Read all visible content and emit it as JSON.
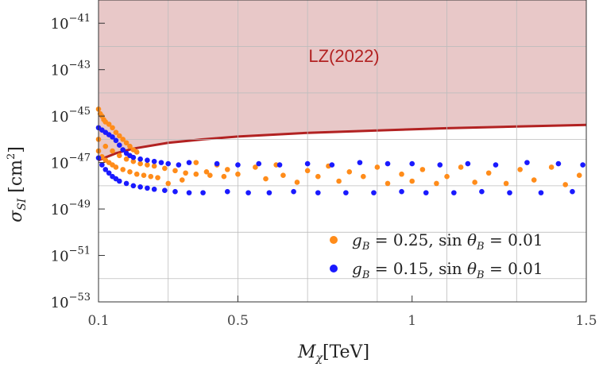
{
  "chart_data": {
    "type": "scatter",
    "title": "",
    "xlabel": "M_χ[TeV]",
    "ylabel": "σ_SI [cm²]",
    "x_scale": "linear",
    "y_scale": "log",
    "xlim": [
      0.1,
      1.5
    ],
    "ylim_log10": [
      -53,
      -40
    ],
    "x_ticks": [
      {
        "value": 0.1,
        "label": "0.1"
      },
      {
        "value": 0.5,
        "label": "0.5"
      },
      {
        "value": 1.0,
        "label": "1"
      },
      {
        "value": 1.5,
        "label": "1.5"
      }
    ],
    "y_ticks": [
      {
        "exp": -41,
        "base": "10",
        "power": "−41"
      },
      {
        "exp": -43,
        "base": "10",
        "power": "−43"
      },
      {
        "exp": -45,
        "base": "10",
        "power": "−45"
      },
      {
        "exp": -47,
        "base": "10",
        "power": "−47"
      },
      {
        "exp": -49,
        "base": "10",
        "power": "−49"
      },
      {
        "exp": -51,
        "base": "10",
        "power": "−51"
      },
      {
        "exp": -53,
        "base": "10",
        "power": "−53"
      }
    ],
    "grid": true,
    "exclusion": {
      "label": "LZ(2022)",
      "fill_color": "#e8c8c8",
      "line_color": "#b22222",
      "curve": [
        {
          "x": 0.1,
          "log10y": -46.9
        },
        {
          "x": 0.15,
          "log10y": -46.6
        },
        {
          "x": 0.2,
          "log10y": -46.4
        },
        {
          "x": 0.3,
          "log10y": -46.15
        },
        {
          "x": 0.4,
          "log10y": -46.0
        },
        {
          "x": 0.5,
          "log10y": -45.88
        },
        {
          "x": 0.7,
          "log10y": -45.72
        },
        {
          "x": 0.9,
          "log10y": -45.62
        },
        {
          "x": 1.1,
          "log10y": -45.52
        },
        {
          "x": 1.3,
          "log10y": -45.45
        },
        {
          "x": 1.5,
          "log10y": -45.38
        }
      ]
    },
    "series": [
      {
        "name_parts": {
          "g": "g",
          "sub": "B",
          "eq1": " = 0.25, sin ",
          "theta": "θ",
          "sub2": "B",
          "eq2": " = 0.01"
        },
        "color": "#ff8c1a",
        "points": [
          {
            "x": 0.1,
            "log10y": -44.7
          },
          {
            "x": 0.105,
            "log10y": -44.9
          },
          {
            "x": 0.11,
            "log10y": -45.0
          },
          {
            "x": 0.115,
            "log10y": -45.15
          },
          {
            "x": 0.12,
            "log10y": -45.25
          },
          {
            "x": 0.13,
            "log10y": -45.35
          },
          {
            "x": 0.14,
            "log10y": -45.5
          },
          {
            "x": 0.15,
            "log10y": -45.7
          },
          {
            "x": 0.16,
            "log10y": -45.85
          },
          {
            "x": 0.17,
            "log10y": -46.0
          },
          {
            "x": 0.18,
            "log10y": -46.15
          },
          {
            "x": 0.19,
            "log10y": -46.3
          },
          {
            "x": 0.2,
            "log10y": -46.45
          },
          {
            "x": 0.21,
            "log10y": -46.55
          },
          {
            "x": 0.1,
            "log10y": -46.5
          },
          {
            "x": 0.11,
            "log10y": -46.75
          },
          {
            "x": 0.12,
            "log10y": -46.9
          },
          {
            "x": 0.13,
            "log10y": -47.0
          },
          {
            "x": 0.14,
            "log10y": -47.1
          },
          {
            "x": 0.15,
            "log10y": -47.2
          },
          {
            "x": 0.17,
            "log10y": -47.3
          },
          {
            "x": 0.19,
            "log10y": -47.4
          },
          {
            "x": 0.21,
            "log10y": -47.5
          },
          {
            "x": 0.23,
            "log10y": -47.55
          },
          {
            "x": 0.25,
            "log10y": -47.6
          },
          {
            "x": 0.27,
            "log10y": -47.65
          },
          {
            "x": 0.1,
            "log10y": -46.0
          },
          {
            "x": 0.12,
            "log10y": -46.3
          },
          {
            "x": 0.14,
            "log10y": -46.5
          },
          {
            "x": 0.16,
            "log10y": -46.7
          },
          {
            "x": 0.18,
            "log10y": -46.85
          },
          {
            "x": 0.2,
            "log10y": -46.95
          },
          {
            "x": 0.22,
            "log10y": -47.05
          },
          {
            "x": 0.24,
            "log10y": -47.1
          },
          {
            "x": 0.26,
            "log10y": -47.15
          },
          {
            "x": 0.29,
            "log10y": -47.25
          },
          {
            "x": 0.32,
            "log10y": -47.35
          },
          {
            "x": 0.35,
            "log10y": -47.45
          },
          {
            "x": 0.38,
            "log10y": -47.5
          },
          {
            "x": 0.42,
            "log10y": -47.55
          },
          {
            "x": 0.46,
            "log10y": -47.6
          },
          {
            "x": 0.3,
            "log10y": -47.9
          },
          {
            "x": 0.34,
            "log10y": -47.75
          },
          {
            "x": 0.38,
            "log10y": -47.0
          },
          {
            "x": 0.41,
            "log10y": -47.4
          },
          {
            "x": 0.44,
            "log10y": -47.1
          },
          {
            "x": 0.47,
            "log10y": -47.3
          },
          {
            "x": 0.5,
            "log10y": -47.5
          },
          {
            "x": 0.55,
            "log10y": -47.2
          },
          {
            "x": 0.58,
            "log10y": -47.7
          },
          {
            "x": 0.61,
            "log10y": -47.1
          },
          {
            "x": 0.63,
            "log10y": -47.55
          },
          {
            "x": 0.67,
            "log10y": -47.85
          },
          {
            "x": 0.7,
            "log10y": -47.35
          },
          {
            "x": 0.73,
            "log10y": -47.6
          },
          {
            "x": 0.76,
            "log10y": -47.15
          },
          {
            "x": 0.79,
            "log10y": -47.8
          },
          {
            "x": 0.82,
            "log10y": -47.4
          },
          {
            "x": 0.86,
            "log10y": -47.6
          },
          {
            "x": 0.9,
            "log10y": -47.2
          },
          {
            "x": 0.93,
            "log10y": -47.9
          },
          {
            "x": 0.97,
            "log10y": -47.5
          },
          {
            "x": 1.0,
            "log10y": -47.8
          },
          {
            "x": 1.03,
            "log10y": -47.3
          },
          {
            "x": 1.07,
            "log10y": -47.9
          },
          {
            "x": 1.1,
            "log10y": -47.6
          },
          {
            "x": 1.14,
            "log10y": -47.2
          },
          {
            "x": 1.18,
            "log10y": -47.85
          },
          {
            "x": 1.22,
            "log10y": -47.45
          },
          {
            "x": 1.27,
            "log10y": -47.9
          },
          {
            "x": 1.31,
            "log10y": -47.3
          },
          {
            "x": 1.35,
            "log10y": -47.75
          },
          {
            "x": 1.4,
            "log10y": -47.2
          },
          {
            "x": 1.44,
            "log10y": -47.95
          },
          {
            "x": 1.48,
            "log10y": -47.55
          }
        ]
      },
      {
        "name_parts": {
          "g": "g",
          "sub": "B",
          "eq1": " = 0.15, sin ",
          "theta": "θ",
          "sub2": "B",
          "eq2": " = 0.01"
        },
        "color": "#1a1aff",
        "points": [
          {
            "x": 0.1,
            "log10y": -45.5
          },
          {
            "x": 0.11,
            "log10y": -45.6
          },
          {
            "x": 0.12,
            "log10y": -45.7
          },
          {
            "x": 0.13,
            "log10y": -45.8
          },
          {
            "x": 0.14,
            "log10y": -45.9
          },
          {
            "x": 0.15,
            "log10y": -46.05
          },
          {
            "x": 0.16,
            "log10y": -46.25
          },
          {
            "x": 0.17,
            "log10y": -46.45
          },
          {
            "x": 0.18,
            "log10y": -46.6
          },
          {
            "x": 0.19,
            "log10y": -46.7
          },
          {
            "x": 0.2,
            "log10y": -46.78
          },
          {
            "x": 0.22,
            "log10y": -46.85
          },
          {
            "x": 0.24,
            "log10y": -46.9
          },
          {
            "x": 0.26,
            "log10y": -46.95
          },
          {
            "x": 0.28,
            "log10y": -47.0
          },
          {
            "x": 0.1,
            "log10y": -46.8
          },
          {
            "x": 0.11,
            "log10y": -47.1
          },
          {
            "x": 0.12,
            "log10y": -47.3
          },
          {
            "x": 0.13,
            "log10y": -47.45
          },
          {
            "x": 0.14,
            "log10y": -47.6
          },
          {
            "x": 0.15,
            "log10y": -47.7
          },
          {
            "x": 0.16,
            "log10y": -47.8
          },
          {
            "x": 0.18,
            "log10y": -47.9
          },
          {
            "x": 0.2,
            "log10y": -48.0
          },
          {
            "x": 0.22,
            "log10y": -48.05
          },
          {
            "x": 0.24,
            "log10y": -48.1
          },
          {
            "x": 0.26,
            "log10y": -48.15
          },
          {
            "x": 0.29,
            "log10y": -48.2
          },
          {
            "x": 0.32,
            "log10y": -48.25
          },
          {
            "x": 0.36,
            "log10y": -48.3
          },
          {
            "x": 0.3,
            "log10y": -47.05
          },
          {
            "x": 0.33,
            "log10y": -47.1
          },
          {
            "x": 0.36,
            "log10y": -47.0
          },
          {
            "x": 0.4,
            "log10y": -48.3
          },
          {
            "x": 0.44,
            "log10y": -47.05
          },
          {
            "x": 0.47,
            "log10y": -48.25
          },
          {
            "x": 0.5,
            "log10y": -47.1
          },
          {
            "x": 0.53,
            "log10y": -48.3
          },
          {
            "x": 0.56,
            "log10y": -47.05
          },
          {
            "x": 0.59,
            "log10y": -48.3
          },
          {
            "x": 0.62,
            "log10y": -47.1
          },
          {
            "x": 0.66,
            "log10y": -48.25
          },
          {
            "x": 0.7,
            "log10y": -47.05
          },
          {
            "x": 0.73,
            "log10y": -48.3
          },
          {
            "x": 0.77,
            "log10y": -47.1
          },
          {
            "x": 0.81,
            "log10y": -48.3
          },
          {
            "x": 0.85,
            "log10y": -47.0
          },
          {
            "x": 0.89,
            "log10y": -48.3
          },
          {
            "x": 0.93,
            "log10y": -47.05
          },
          {
            "x": 0.97,
            "log10y": -48.25
          },
          {
            "x": 1.0,
            "log10y": -47.05
          },
          {
            "x": 1.04,
            "log10y": -48.3
          },
          {
            "x": 1.08,
            "log10y": -47.1
          },
          {
            "x": 1.12,
            "log10y": -48.3
          },
          {
            "x": 1.16,
            "log10y": -47.05
          },
          {
            "x": 1.2,
            "log10y": -48.25
          },
          {
            "x": 1.24,
            "log10y": -47.1
          },
          {
            "x": 1.28,
            "log10y": -48.3
          },
          {
            "x": 1.33,
            "log10y": -47.0
          },
          {
            "x": 1.37,
            "log10y": -48.3
          },
          {
            "x": 1.42,
            "log10y": -47.05
          },
          {
            "x": 1.46,
            "log10y": -48.25
          },
          {
            "x": 1.49,
            "log10y": -47.1
          }
        ]
      }
    ]
  }
}
